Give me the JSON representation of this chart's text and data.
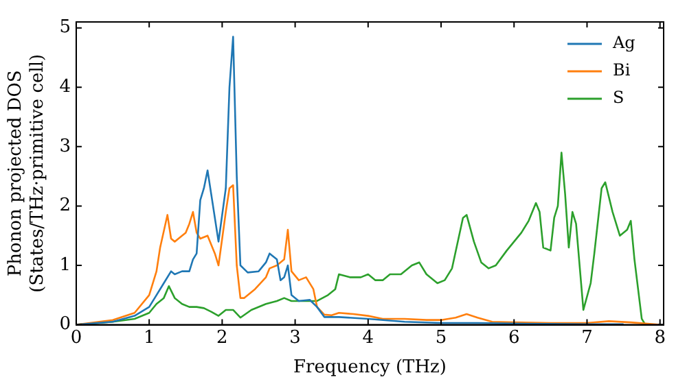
{
  "chart_data": {
    "type": "line",
    "xlabel": "Frequency (THz)",
    "ylabel": "Phonon projected DOS\n(States/THz·primitive cell)",
    "xlim": [
      0,
      8.05
    ],
    "ylim": [
      0,
      5.1
    ],
    "xticks": [
      0,
      1,
      2,
      3,
      4,
      5,
      6,
      7,
      8
    ],
    "yticks": [
      0,
      1,
      2,
      3,
      4,
      5
    ],
    "grid": false,
    "legend": "top right",
    "marker": "none",
    "line_style": "solid",
    "series": [
      {
        "name": "Ag",
        "color": "#1f77b4",
        "x": [
          0,
          0.5,
          0.8,
          1.0,
          1.1,
          1.2,
          1.3,
          1.35,
          1.45,
          1.55,
          1.6,
          1.65,
          1.7,
          1.75,
          1.8,
          1.85,
          1.95,
          2.05,
          2.1,
          2.15,
          2.2,
          2.25,
          2.35,
          2.5,
          2.6,
          2.65,
          2.75,
          2.8,
          2.85,
          2.9,
          2.95,
          3.05,
          3.2,
          3.3,
          3.4,
          3.6,
          4.0,
          4.5,
          5.0,
          5.5,
          6.0,
          7.0,
          7.5
        ],
        "values": [
          0,
          0.05,
          0.15,
          0.3,
          0.5,
          0.7,
          0.9,
          0.85,
          0.9,
          0.9,
          1.1,
          1.2,
          2.1,
          2.3,
          2.6,
          2.2,
          1.4,
          2.3,
          4.0,
          4.85,
          2.5,
          1.0,
          0.88,
          0.9,
          1.05,
          1.2,
          1.1,
          0.75,
          0.8,
          1.0,
          0.5,
          0.4,
          0.42,
          0.3,
          0.13,
          0.13,
          0.1,
          0.05,
          0.03,
          0.03,
          0.02,
          0.01,
          0.01
        ]
      },
      {
        "name": "Bi",
        "color": "#ff7f0e",
        "x": [
          0,
          0.5,
          0.8,
          1.0,
          1.1,
          1.15,
          1.25,
          1.3,
          1.35,
          1.45,
          1.5,
          1.55,
          1.6,
          1.65,
          1.7,
          1.8,
          1.9,
          1.95,
          2.05,
          2.1,
          2.15,
          2.2,
          2.25,
          2.3,
          2.45,
          2.6,
          2.65,
          2.75,
          2.85,
          2.9,
          2.95,
          3.05,
          3.15,
          3.25,
          3.3,
          3.4,
          3.5,
          3.6,
          3.8,
          4.0,
          4.2,
          4.5,
          4.8,
          5.0,
          5.2,
          5.35,
          5.5,
          5.7,
          6.0,
          6.5,
          7.0,
          7.3,
          7.6,
          8.0
        ],
        "values": [
          0,
          0.08,
          0.2,
          0.5,
          0.9,
          1.3,
          1.85,
          1.45,
          1.4,
          1.5,
          1.55,
          1.7,
          1.9,
          1.55,
          1.45,
          1.5,
          1.2,
          1.0,
          1.9,
          2.3,
          2.35,
          1.0,
          0.45,
          0.45,
          0.6,
          0.8,
          0.95,
          1.0,
          1.1,
          1.6,
          0.9,
          0.75,
          0.8,
          0.6,
          0.3,
          0.17,
          0.16,
          0.2,
          0.18,
          0.15,
          0.1,
          0.1,
          0.08,
          0.08,
          0.12,
          0.18,
          0.12,
          0.05,
          0.04,
          0.03,
          0.03,
          0.06,
          0.04,
          0
        ]
      },
      {
        "name": "S",
        "color": "#2ca02c",
        "x": [
          0,
          0.5,
          0.8,
          1.0,
          1.1,
          1.2,
          1.27,
          1.35,
          1.45,
          1.55,
          1.65,
          1.75,
          1.85,
          1.95,
          2.05,
          2.15,
          2.25,
          2.4,
          2.6,
          2.75,
          2.85,
          2.95,
          3.1,
          3.3,
          3.45,
          3.55,
          3.6,
          3.75,
          3.9,
          4.0,
          4.1,
          4.2,
          4.3,
          4.45,
          4.6,
          4.7,
          4.8,
          4.95,
          5.05,
          5.15,
          5.3,
          5.35,
          5.45,
          5.55,
          5.65,
          5.75,
          5.9,
          6.0,
          6.1,
          6.2,
          6.3,
          6.35,
          6.4,
          6.5,
          6.55,
          6.6,
          6.65,
          6.7,
          6.75,
          6.8,
          6.85,
          6.95,
          7.05,
          7.1,
          7.2,
          7.25,
          7.35,
          7.45,
          7.55,
          7.6,
          7.65,
          7.75,
          7.8,
          8.0
        ],
        "values": [
          0,
          0.05,
          0.1,
          0.2,
          0.35,
          0.45,
          0.65,
          0.45,
          0.35,
          0.3,
          0.3,
          0.28,
          0.22,
          0.15,
          0.25,
          0.25,
          0.12,
          0.25,
          0.35,
          0.4,
          0.45,
          0.4,
          0.4,
          0.4,
          0.5,
          0.6,
          0.85,
          0.8,
          0.8,
          0.85,
          0.75,
          0.75,
          0.85,
          0.85,
          1.0,
          1.05,
          0.85,
          0.7,
          0.75,
          0.95,
          1.8,
          1.85,
          1.4,
          1.05,
          0.95,
          1.0,
          1.25,
          1.4,
          1.55,
          1.75,
          2.05,
          1.9,
          1.3,
          1.25,
          1.8,
          2.0,
          2.9,
          2.2,
          1.3,
          1.9,
          1.7,
          0.25,
          0.7,
          1.2,
          2.3,
          2.4,
          1.9,
          1.5,
          1.6,
          1.75,
          1.1,
          0.1,
          0,
          0
        ]
      }
    ]
  }
}
